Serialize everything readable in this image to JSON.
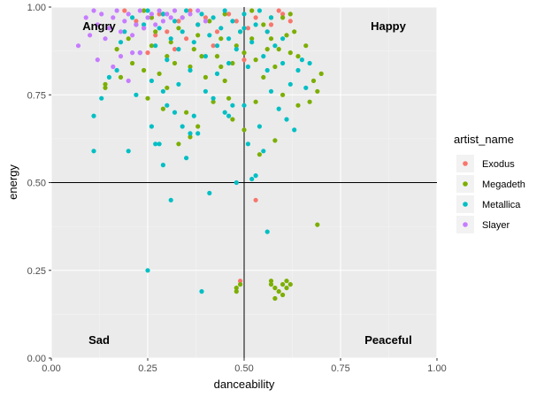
{
  "chart_data": {
    "type": "scatter",
    "xlabel": "danceability",
    "ylabel": "energy",
    "xlim": [
      0,
      1
    ],
    "ylim": [
      0,
      1
    ],
    "xticks": [
      "0.00",
      "0.25",
      "0.50",
      "0.75",
      "1.00"
    ],
    "yticks": [
      "0.00",
      "0.25",
      "0.50",
      "0.75",
      "1.00"
    ],
    "reference_lines": {
      "x": 0.5,
      "y": 0.5
    },
    "quadrant_labels": {
      "top_left": "Angry",
      "top_right": "Happy",
      "bottom_left": "Sad",
      "bottom_right": "Peaceful"
    },
    "legend": {
      "title": "artist_name",
      "position": "right"
    },
    "grid": true,
    "series": [
      {
        "name": "Exodus",
        "color": "#F8766D",
        "points": [
          [
            0.19,
            0.99
          ],
          [
            0.22,
            0.96
          ],
          [
            0.24,
            0.94
          ],
          [
            0.26,
            0.97
          ],
          [
            0.28,
            0.98
          ],
          [
            0.3,
            0.93
          ],
          [
            0.33,
            0.96
          ],
          [
            0.36,
            0.99
          ],
          [
            0.38,
            0.95
          ],
          [
            0.4,
            0.97
          ],
          [
            0.43,
            0.93
          ],
          [
            0.46,
            0.98
          ],
          [
            0.48,
            0.96
          ],
          [
            0.51,
            0.94
          ],
          [
            0.53,
            0.97
          ],
          [
            0.56,
            0.93
          ],
          [
            0.59,
            0.99
          ],
          [
            0.6,
            0.98
          ],
          [
            0.62,
            0.96
          ],
          [
            0.27,
            0.92
          ],
          [
            0.35,
            0.91
          ],
          [
            0.42,
            0.89
          ],
          [
            0.5,
            0.85
          ],
          [
            0.57,
            0.95
          ],
          [
            0.32,
            0.88
          ],
          [
            0.25,
            0.87
          ],
          [
            0.53,
            0.45
          ],
          [
            0.49,
            0.22
          ]
        ]
      },
      {
        "name": "Megadeth",
        "color": "#7CAE00",
        "points": [
          [
            0.14,
            0.78
          ],
          [
            0.14,
            0.77
          ],
          [
            0.17,
            0.88
          ],
          [
            0.2,
            0.91
          ],
          [
            0.22,
            0.95
          ],
          [
            0.24,
            0.99
          ],
          [
            0.26,
            0.97
          ],
          [
            0.27,
            0.93
          ],
          [
            0.29,
            0.98
          ],
          [
            0.3,
            0.86
          ],
          [
            0.31,
            0.9
          ],
          [
            0.33,
            0.94
          ],
          [
            0.34,
            0.97
          ],
          [
            0.36,
            0.83
          ],
          [
            0.37,
            0.88
          ],
          [
            0.38,
            0.92
          ],
          [
            0.4,
            0.8
          ],
          [
            0.41,
            0.96
          ],
          [
            0.43,
            0.86
          ],
          [
            0.44,
            0.91
          ],
          [
            0.45,
            0.98
          ],
          [
            0.47,
            0.84
          ],
          [
            0.48,
            0.89
          ],
          [
            0.49,
            0.93
          ],
          [
            0.5,
            0.87
          ],
          [
            0.52,
            0.99
          ],
          [
            0.53,
            0.85
          ],
          [
            0.55,
            0.95
          ],
          [
            0.56,
            0.88
          ],
          [
            0.57,
            0.91
          ],
          [
            0.58,
            0.83
          ],
          [
            0.6,
            0.97
          ],
          [
            0.61,
            0.92
          ],
          [
            0.62,
            0.98
          ],
          [
            0.64,
            0.86
          ],
          [
            0.66,
            0.89
          ],
          [
            0.68,
            0.79
          ],
          [
            0.7,
            0.81
          ],
          [
            0.69,
            0.76
          ],
          [
            0.67,
            0.73
          ],
          [
            0.64,
            0.72
          ],
          [
            0.55,
            0.8
          ],
          [
            0.53,
            0.73
          ],
          [
            0.45,
            0.79
          ],
          [
            0.42,
            0.73
          ],
          [
            0.38,
            0.66
          ],
          [
            0.36,
            0.63
          ],
          [
            0.33,
            0.61
          ],
          [
            0.3,
            0.77
          ],
          [
            0.28,
            0.81
          ],
          [
            0.25,
            0.74
          ],
          [
            0.24,
            0.82
          ],
          [
            0.35,
            0.7
          ],
          [
            0.47,
            0.68
          ],
          [
            0.5,
            0.65
          ],
          [
            0.54,
            0.58
          ],
          [
            0.58,
            0.62
          ],
          [
            0.6,
            0.75
          ],
          [
            0.62,
            0.87
          ],
          [
            0.46,
            0.74
          ],
          [
            0.39,
            0.86
          ],
          [
            0.32,
            0.84
          ],
          [
            0.26,
            0.89
          ],
          [
            0.21,
            0.84
          ],
          [
            0.18,
            0.8
          ],
          [
            0.29,
            0.71
          ],
          [
            0.44,
            0.83
          ],
          [
            0.52,
            0.91
          ],
          [
            0.57,
            0.97
          ],
          [
            0.59,
            0.88
          ],
          [
            0.63,
            0.93
          ],
          [
            0.48,
            0.19
          ],
          [
            0.48,
            0.2
          ],
          [
            0.49,
            0.21
          ],
          [
            0.57,
            0.21
          ],
          [
            0.57,
            0.22
          ],
          [
            0.58,
            0.2
          ],
          [
            0.59,
            0.19
          ],
          [
            0.6,
            0.21
          ],
          [
            0.61,
            0.22
          ],
          [
            0.62,
            0.21
          ],
          [
            0.58,
            0.17
          ],
          [
            0.6,
            0.18
          ],
          [
            0.61,
            0.2
          ],
          [
            0.69,
            0.38
          ]
        ]
      },
      {
        "name": "Metallica",
        "color": "#00BFC4",
        "points": [
          [
            0.11,
            0.59
          ],
          [
            0.11,
            0.69
          ],
          [
            0.13,
            0.74
          ],
          [
            0.15,
            0.8
          ],
          [
            0.17,
            0.82
          ],
          [
            0.18,
            0.9
          ],
          [
            0.19,
            0.93
          ],
          [
            0.2,
            0.59
          ],
          [
            0.21,
            0.97
          ],
          [
            0.22,
            0.75
          ],
          [
            0.23,
            0.87
          ],
          [
            0.24,
            0.95
          ],
          [
            0.25,
            0.99
          ],
          [
            0.25,
            0.25
          ],
          [
            0.26,
            0.66
          ],
          [
            0.26,
            0.79
          ],
          [
            0.27,
            0.89
          ],
          [
            0.27,
            0.61
          ],
          [
            0.28,
            0.94
          ],
          [
            0.28,
            0.61
          ],
          [
            0.29,
            0.98
          ],
          [
            0.29,
            0.55
          ],
          [
            0.3,
            0.72
          ],
          [
            0.3,
            0.85
          ],
          [
            0.31,
            0.91
          ],
          [
            0.31,
            0.45
          ],
          [
            0.32,
            0.96
          ],
          [
            0.32,
            0.7
          ],
          [
            0.33,
            0.78
          ],
          [
            0.33,
            0.88
          ],
          [
            0.34,
            0.93
          ],
          [
            0.35,
            0.99
          ],
          [
            0.35,
            0.57
          ],
          [
            0.36,
            0.64
          ],
          [
            0.36,
            0.82
          ],
          [
            0.37,
            0.9
          ],
          [
            0.37,
            0.69
          ],
          [
            0.38,
            0.95
          ],
          [
            0.38,
            0.64
          ],
          [
            0.39,
            0.98
          ],
          [
            0.39,
            0.19
          ],
          [
            0.4,
            0.76
          ],
          [
            0.4,
            0.86
          ],
          [
            0.41,
            0.92
          ],
          [
            0.41,
            0.47
          ],
          [
            0.42,
            0.97
          ],
          [
            0.43,
            0.81
          ],
          [
            0.43,
            0.89
          ],
          [
            0.44,
            0.94
          ],
          [
            0.45,
            0.99
          ],
          [
            0.45,
            0.7
          ],
          [
            0.46,
            0.84
          ],
          [
            0.46,
            0.91
          ],
          [
            0.47,
            0.96
          ],
          [
            0.47,
            0.72
          ],
          [
            0.48,
            0.88
          ],
          [
            0.48,
            0.5
          ],
          [
            0.49,
            0.93
          ],
          [
            0.5,
            0.98
          ],
          [
            0.5,
            0.72
          ],
          [
            0.51,
            0.83
          ],
          [
            0.51,
            0.61
          ],
          [
            0.52,
            0.9
          ],
          [
            0.52,
            0.51
          ],
          [
            0.53,
            0.95
          ],
          [
            0.53,
            0.52
          ],
          [
            0.54,
            0.99
          ],
          [
            0.54,
            0.66
          ],
          [
            0.55,
            0.86
          ],
          [
            0.55,
            0.59
          ],
          [
            0.56,
            0.93
          ],
          [
            0.56,
            0.36
          ],
          [
            0.57,
            0.97
          ],
          [
            0.57,
            0.76
          ],
          [
            0.58,
            0.89
          ],
          [
            0.59,
            0.71
          ],
          [
            0.6,
            0.84
          ],
          [
            0.61,
            0.68
          ],
          [
            0.62,
            0.78
          ],
          [
            0.63,
            0.65
          ],
          [
            0.64,
            0.82
          ],
          [
            0.65,
            0.85
          ],
          [
            0.66,
            0.77
          ],
          [
            0.67,
            0.84
          ],
          [
            0.5,
            0.94
          ],
          [
            0.46,
            0.69
          ],
          [
            0.42,
            0.74
          ],
          [
            0.34,
            0.66
          ],
          [
            0.29,
            0.76
          ],
          [
            0.56,
            0.82
          ],
          [
            0.6,
            0.91
          ]
        ]
      },
      {
        "name": "Slayer",
        "color": "#C77CFF",
        "points": [
          [
            0.07,
            0.89
          ],
          [
            0.1,
            0.92
          ],
          [
            0.12,
            0.95
          ],
          [
            0.13,
            0.98
          ],
          [
            0.14,
            0.91
          ],
          [
            0.15,
            0.94
          ],
          [
            0.16,
            0.97
          ],
          [
            0.17,
            0.99
          ],
          [
            0.18,
            0.93
          ],
          [
            0.19,
            0.96
          ],
          [
            0.2,
            0.98
          ],
          [
            0.2,
            0.79
          ],
          [
            0.21,
            0.92
          ],
          [
            0.22,
            0.95
          ],
          [
            0.23,
            0.99
          ],
          [
            0.23,
            0.87
          ],
          [
            0.24,
            0.94
          ],
          [
            0.25,
            0.97
          ],
          [
            0.26,
            0.98
          ],
          [
            0.27,
            0.95
          ],
          [
            0.28,
            0.99
          ],
          [
            0.29,
            0.96
          ],
          [
            0.3,
            0.98
          ],
          [
            0.31,
            0.97
          ],
          [
            0.32,
            0.99
          ],
          [
            0.34,
            0.97
          ],
          [
            0.36,
            0.98
          ],
          [
            0.38,
            0.99
          ],
          [
            0.4,
            0.96
          ],
          [
            0.12,
            0.85
          ],
          [
            0.16,
            0.83
          ],
          [
            0.18,
            0.86
          ],
          [
            0.21,
            0.87
          ],
          [
            0.11,
            0.99
          ],
          [
            0.09,
            0.97
          ]
        ]
      }
    ]
  }
}
